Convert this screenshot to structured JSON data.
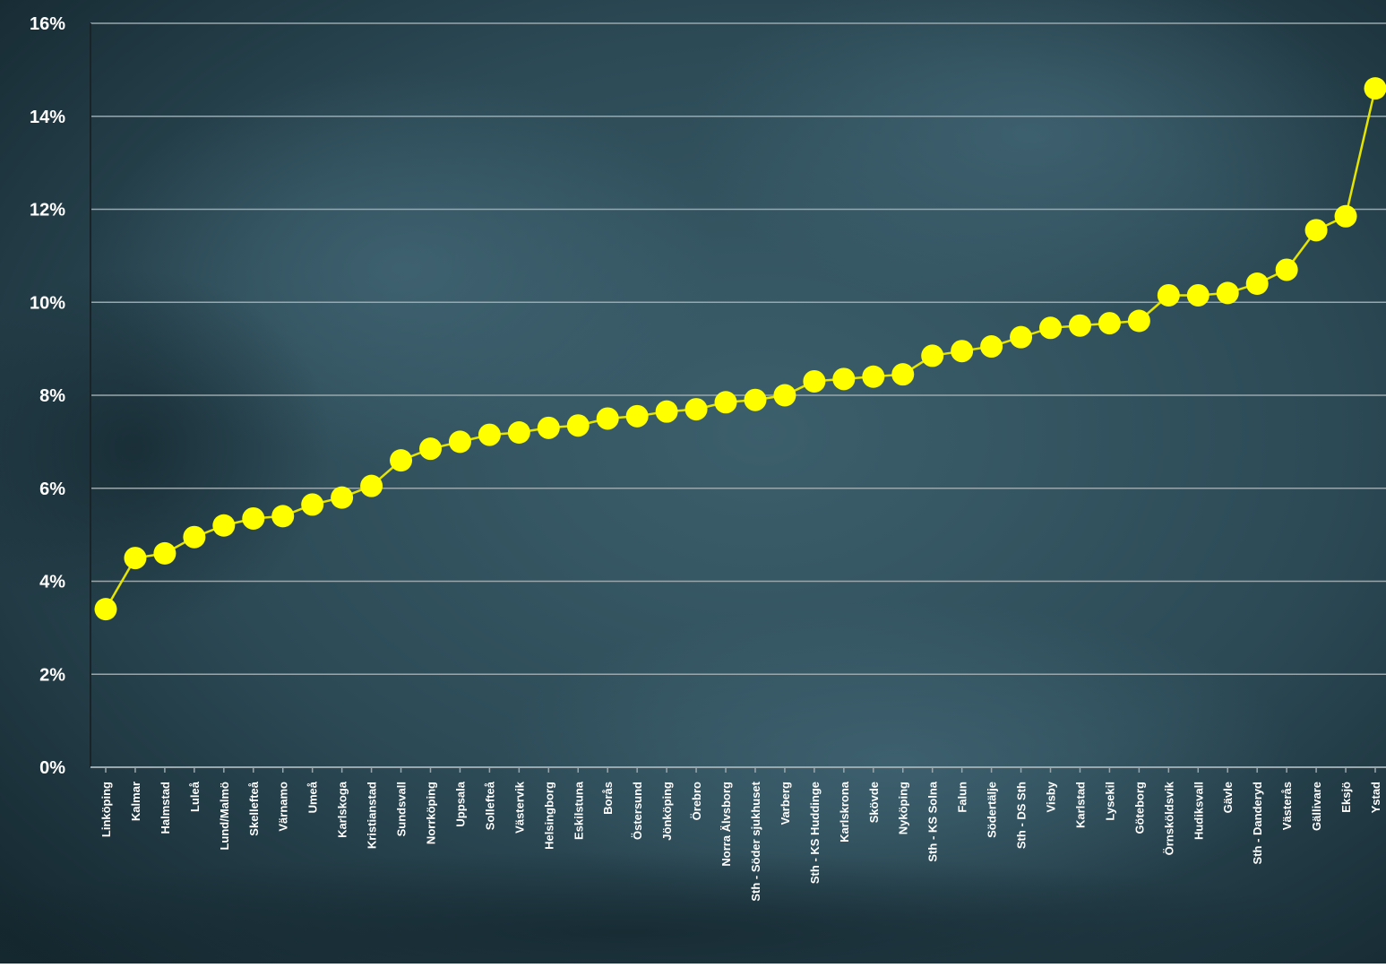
{
  "chart_data": {
    "type": "line",
    "title": "",
    "xlabel": "",
    "ylabel": "",
    "ylim": [
      0,
      0.16
    ],
    "yticks": [
      "0%",
      "2%",
      "4%",
      "6%",
      "8%",
      "10%",
      "12%",
      "14%",
      "16%"
    ],
    "grid": true,
    "legend": "none",
    "categories": [
      "Linköping",
      "Kalmar",
      "Halmstad",
      "Luleå",
      "Lund/Malmö",
      "Skellefteå",
      "Värnamo",
      "Umeå",
      "Karlskoga",
      "Kristianstad",
      "Sundsvall",
      "Norrköping",
      "Uppsala",
      "Sollefteå",
      "Västervik",
      "Helsingborg",
      "Eskilstuna",
      "Borås",
      "Östersund",
      "Jönköping",
      "Örebro",
      "Norra Älvsborg",
      "Sth - Söder sjukhuset",
      "Varberg",
      "Sth - KS Huddinge",
      "Karlskrona",
      "Skövde",
      "Nyköping",
      "Sth - KS Solna",
      "Falun",
      "Södertälje",
      "Sth - DS Sth",
      "Visby",
      "Karlstad",
      "Lysekil",
      "Göteborg",
      "Örnsköldsvik",
      "Hudiksvall",
      "Gävle",
      "Sth - Danderyd",
      "Västerås",
      "Gällivare",
      "Eksjö",
      "Ystad"
    ],
    "series": [
      {
        "values": [
          3.4,
          4.5,
          4.6,
          4.95,
          5.2,
          5.35,
          5.4,
          5.65,
          5.8,
          6.05,
          6.6,
          6.85,
          7.0,
          7.15,
          7.2,
          7.3,
          7.35,
          7.5,
          7.55,
          7.65,
          7.7,
          7.85,
          7.9,
          8.0,
          8.3,
          8.35,
          8.4,
          8.45,
          8.85,
          8.95,
          9.05,
          9.25,
          9.45,
          9.5,
          9.55,
          9.6,
          10.15,
          10.15,
          10.2,
          10.4,
          10.7,
          11.55,
          11.85,
          14.6
        ]
      }
    ],
    "colors": {
      "line": "#e5e500",
      "marker": "#ffff00",
      "gridline": "#9aa7ad",
      "axis": "#1a2428",
      "text": "#ffffff",
      "background_dark": "#162a33",
      "background_light": "#3e6270"
    }
  }
}
